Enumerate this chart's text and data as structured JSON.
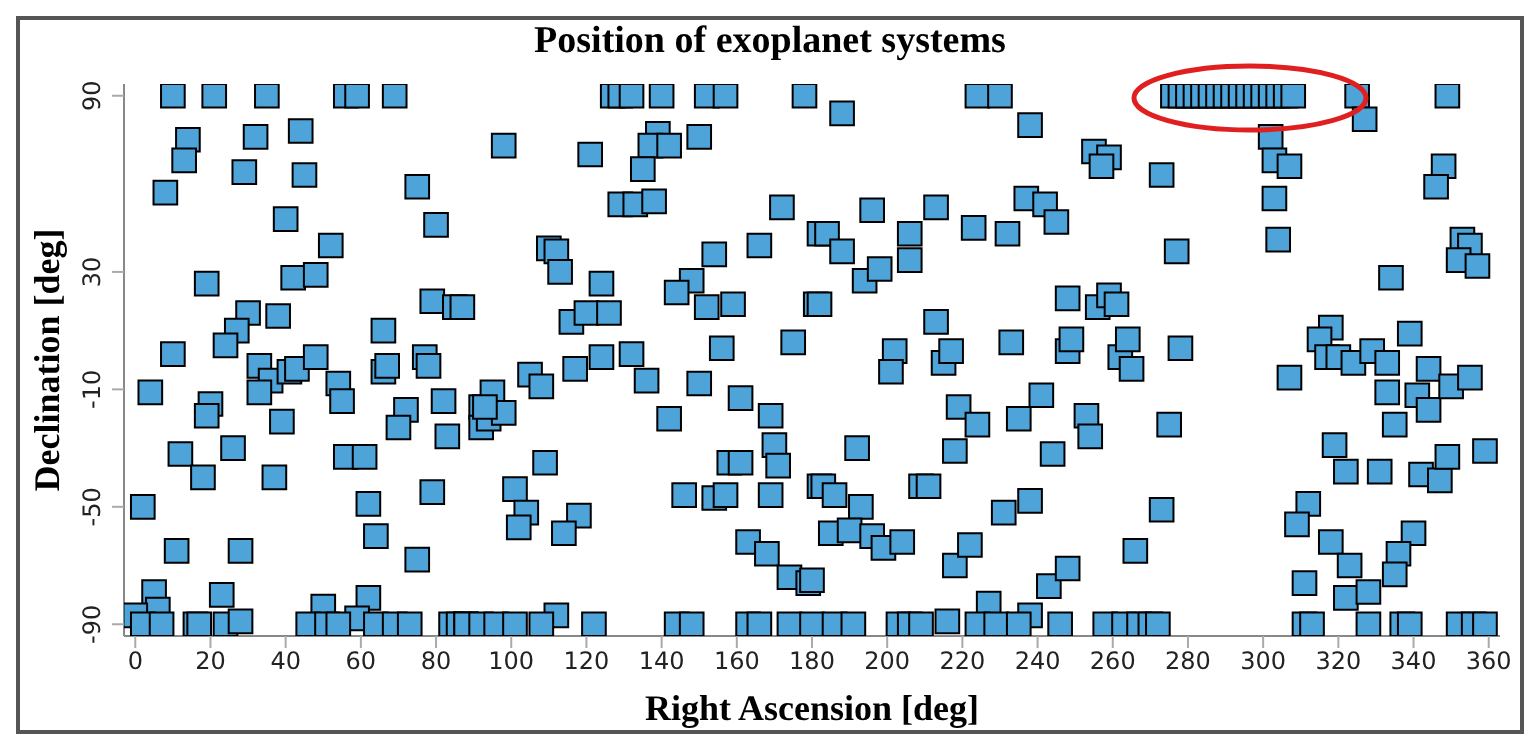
{
  "chart_data": {
    "type": "scatter",
    "title": "Position of exoplanet systems",
    "xlabel": "Right Ascension [deg]",
    "ylabel": "Declination [deg]",
    "marker": "square",
    "color": "#4ea3d9",
    "xlim": [
      -3,
      363
    ],
    "ylim": [
      -94,
      94
    ],
    "xticks": [
      0,
      20,
      40,
      60,
      80,
      100,
      120,
      140,
      160,
      180,
      200,
      220,
      240,
      260,
      280,
      300,
      320,
      340,
      360
    ],
    "yticks": [
      -90,
      -50,
      -10,
      30,
      90
    ],
    "x": [
      10,
      21,
      35,
      56,
      59,
      69,
      14,
      13,
      8,
      32,
      29,
      44,
      45,
      75,
      40,
      80,
      52,
      19,
      42,
      48,
      79,
      85,
      30,
      27,
      24,
      38,
      10,
      66,
      33,
      36,
      33,
      41,
      43,
      48,
      54,
      55,
      66,
      67,
      77,
      78,
      4,
      20,
      19,
      39,
      72,
      70,
      82,
      83,
      12,
      26,
      18,
      37,
      56,
      61,
      79,
      2,
      62,
      64,
      11,
      28,
      75,
      5,
      23,
      6,
      0,
      2,
      7,
      16,
      17,
      24,
      28,
      50,
      62,
      59,
      46,
      51,
      54,
      64,
      69,
      73,
      84,
      86,
      88,
      92,
      92,
      127,
      129,
      132,
      140,
      152,
      157,
      178,
      98,
      121,
      139,
      137,
      142,
      150,
      135,
      129,
      133,
      138,
      172,
      182,
      110,
      112,
      113,
      124,
      154,
      166,
      148,
      144,
      152,
      159,
      116,
      120,
      126,
      87,
      181,
      105,
      108,
      117,
      124,
      132,
      136,
      156,
      175,
      150,
      161,
      95,
      94,
      98,
      93,
      142,
      169,
      170,
      171,
      109,
      101,
      104,
      102,
      118,
      114,
      146,
      154,
      157,
      158,
      161,
      169,
      182,
      163,
      168,
      174,
      179,
      180,
      112,
      88,
      92,
      96,
      101,
      108,
      122,
      144,
      148,
      163,
      166,
      174,
      180,
      224,
      230,
      188,
      238,
      255,
      259,
      257,
      273,
      196,
      213,
      184,
      188,
      206,
      223,
      232,
      237,
      242,
      245,
      194,
      198,
      206,
      182,
      213,
      248,
      256,
      259,
      261,
      202,
      201,
      215,
      217,
      233,
      248,
      249,
      262,
      264,
      265,
      219,
      224,
      235,
      241,
      253,
      254,
      218,
      244,
      192,
      183,
      186,
      193,
      209,
      211,
      231,
      238,
      185,
      190,
      196,
      199,
      204,
      218,
      222,
      243,
      248,
      266,
      273,
      227,
      238,
      216,
      186,
      191,
      203,
      206,
      209,
      224,
      229,
      235,
      246,
      258,
      263,
      267,
      270,
      272,
      276,
      278,
      280,
      282,
      284,
      286,
      288,
      290,
      292,
      294,
      296,
      298,
      300,
      302,
      304,
      306,
      308,
      325,
      327,
      349,
      302,
      303,
      307,
      303,
      348,
      346,
      304,
      277,
      353,
      355,
      352,
      357,
      334,
      318,
      315,
      317,
      320,
      324,
      329,
      333,
      339,
      344,
      341,
      344,
      350,
      355,
      333,
      335,
      307,
      278,
      275,
      319,
      322,
      331,
      342,
      347,
      349,
      359,
      312,
      309,
      318,
      323,
      340,
      336,
      335,
      311,
      322,
      328,
      311,
      313,
      328,
      337,
      339,
      352,
      356,
      359
    ],
    "values": [
      90,
      90,
      90,
      90,
      90,
      90,
      75,
      68,
      57,
      76,
      64,
      78,
      63,
      59,
      48,
      46,
      39,
      26,
      28,
      29,
      20,
      18,
      16,
      10,
      5,
      15,
      2,
      10,
      -2,
      -7,
      -11,
      -4,
      -3,
      1,
      -8,
      -14,
      -4,
      -2,
      1,
      -2,
      -11,
      -15,
      -19,
      -21,
      -17,
      -23,
      -14,
      -26,
      -32,
      -30,
      -40,
      -40,
      -33,
      -33,
      -45,
      -50,
      -49,
      -60,
      -65,
      -65,
      -68,
      -79,
      -80,
      -85,
      -87,
      -90,
      -90,
      -90,
      -90,
      -90,
      -89,
      -84,
      -81,
      -88,
      -90,
      -90,
      -90,
      -90,
      -90,
      -90,
      -90,
      -90,
      -90,
      -16,
      -23,
      90,
      90,
      90,
      90,
      90,
      90,
      90,
      73,
      70,
      77,
      73,
      73,
      76,
      65,
      53,
      53,
      54,
      52,
      43,
      38,
      37,
      30,
      26,
      36,
      39,
      27,
      23,
      18,
      19,
      13,
      16,
      16,
      18,
      19,
      -5,
      -9,
      -3,
      1,
      2,
      -7,
      4,
      6,
      -8,
      -13,
      -11,
      -20,
      -18,
      -16,
      -20,
      -19,
      -29,
      -36,
      -35,
      -44,
      -52,
      -57,
      -53,
      -59,
      -46,
      -47,
      -46,
      -35,
      -35,
      -46,
      -43,
      -62,
      -66,
      -74,
      -76,
      -75,
      -87,
      -90,
      -90,
      -90,
      -90,
      -90,
      -90,
      -90,
      -90,
      -90,
      -90,
      -90,
      -90,
      90,
      90,
      84,
      80,
      71,
      69,
      66,
      63,
      51,
      52,
      43,
      37,
      43,
      45,
      43,
      55,
      53,
      47,
      27,
      31,
      34,
      19,
      13,
      21,
      18,
      22,
      19,
      3,
      -4,
      -1,
      3,
      6,
      3,
      7,
      1,
      7,
      -3,
      -16,
      -22,
      -20,
      -12,
      -19,
      -26,
      -31,
      -32,
      -30,
      -43,
      -46,
      -50,
      -43,
      -43,
      -52,
      -48,
      -59,
      -58,
      -60,
      -64,
      -62,
      -70,
      -63,
      -77,
      -71,
      -65,
      -51,
      -83,
      -87,
      -89,
      -90,
      -90,
      -90,
      -90,
      -90,
      -90,
      -90,
      -90,
      -90,
      -90,
      -90,
      -90,
      -90,
      -90,
      90,
      90,
      90,
      90,
      90,
      90,
      90,
      90,
      90,
      90,
      90,
      90,
      90,
      90,
      90,
      90,
      90,
      90,
      82,
      90,
      76,
      68,
      66,
      55,
      66,
      59,
      41,
      37,
      41,
      39,
      34,
      32,
      28,
      11,
      7,
      1,
      1,
      -1,
      3,
      -1,
      9,
      -3,
      -12,
      -17,
      -9,
      -6,
      -11,
      -22,
      -6,
      4,
      -22,
      -29,
      -38,
      -38,
      -39,
      -41,
      -33,
      -31,
      -49,
      -56,
      -62,
      -70,
      -59,
      -66,
      -73,
      -76,
      -81,
      -79,
      -90,
      -90,
      -90,
      -90,
      -90,
      -90,
      -90,
      -90
    ]
  }
}
